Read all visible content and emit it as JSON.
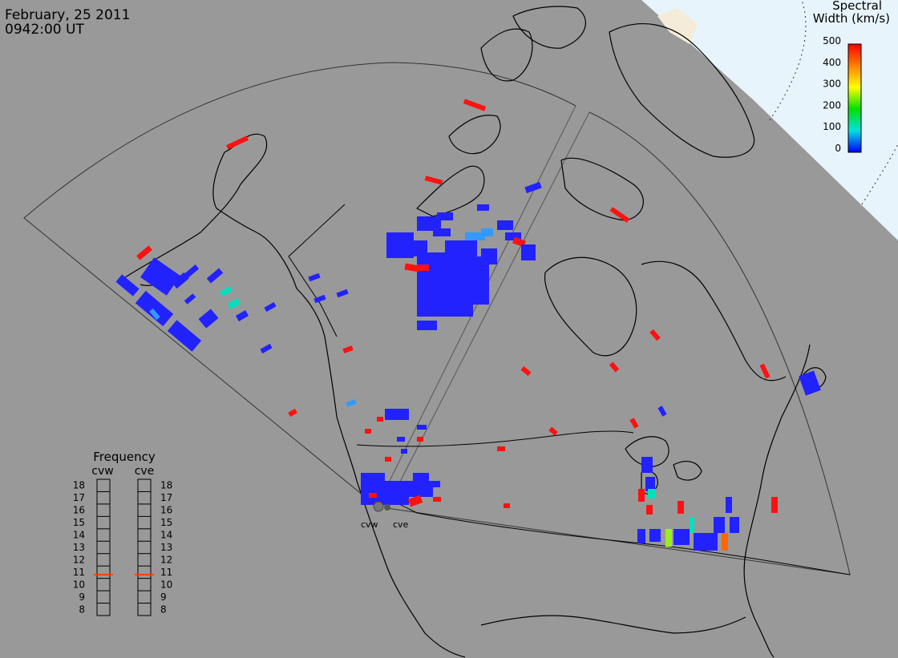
{
  "header": {
    "date": "February, 25 2011",
    "time": "0942:00 UT"
  },
  "colorbar": {
    "title_line1": "Spectral",
    "title_line2": "Width (km/s)",
    "ticks": [
      "500",
      "400",
      "300",
      "200",
      "100",
      "0"
    ],
    "colors": [
      "#ff0000",
      "#ff8000",
      "#ffff00",
      "#00e000",
      "#00e0e0",
      "#0000ff"
    ]
  },
  "stations": {
    "west": "cvw",
    "east": "cve"
  },
  "frequency": {
    "title": "Frequency",
    "left_label": "cvw",
    "right_label": "cve",
    "scale": [
      "18",
      "17",
      "16",
      "15",
      "14",
      "13",
      "12",
      "11",
      "10",
      "9",
      "8"
    ],
    "current_mhz": 10.8,
    "marker_color": "#ff4000"
  },
  "colors": {
    "background": "#999999",
    "twilight": "#e8f4fb",
    "sunlit_land": "#f4ecd8",
    "scatter_low": "#2222ff",
    "scatter_high": "#ff1111"
  }
}
